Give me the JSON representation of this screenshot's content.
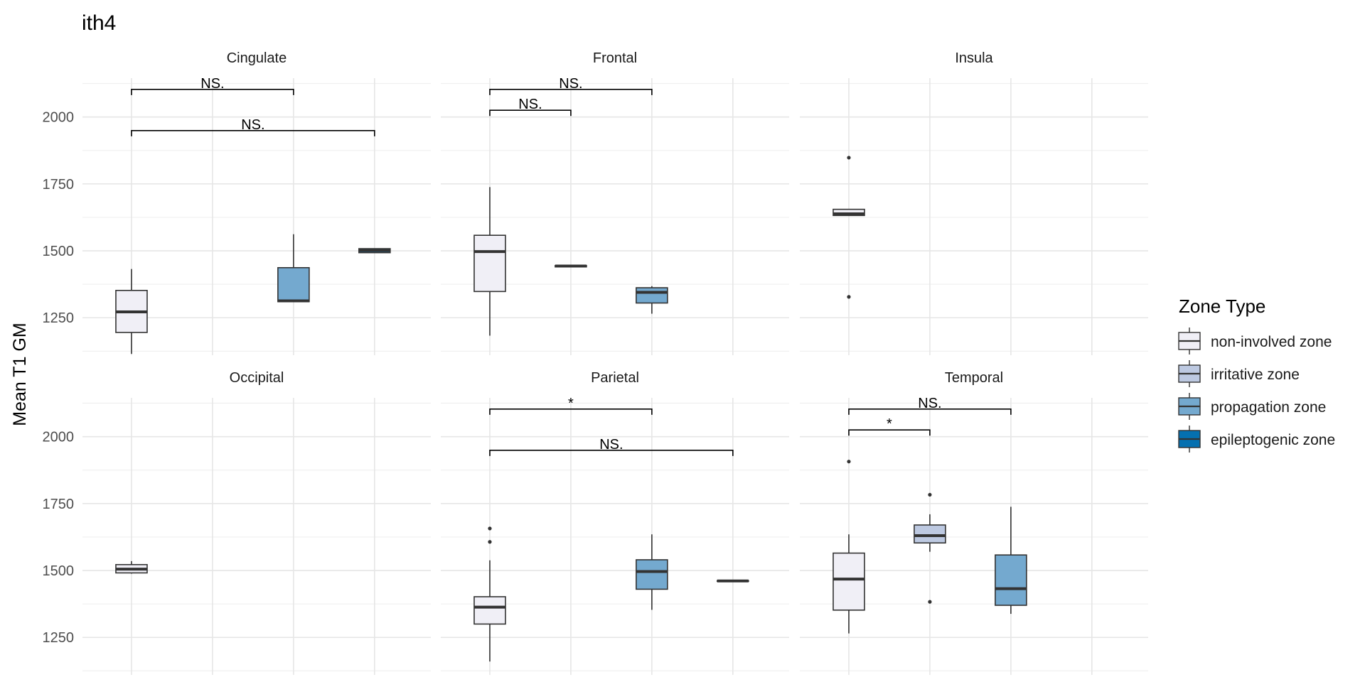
{
  "chart_data": {
    "type": "box",
    "title": "ith4",
    "xlabel": "",
    "ylabel": "Mean T1 GM",
    "ylim": [
      1110,
      2145
    ],
    "yticks": [
      1250,
      1500,
      1750,
      2000
    ],
    "ytick_labels": [
      "1250",
      "1500",
      "1750",
      "2000"
    ],
    "grid": true,
    "legend": {
      "title": "Zone Type",
      "position": "right",
      "items": [
        {
          "label": "non-involved zone",
          "color": "#f0eff6"
        },
        {
          "label": "irritative zone",
          "color": "#bdc9e1"
        },
        {
          "label": "propagation zone",
          "color": "#74a9cf"
        },
        {
          "label": "epileptogenic zone",
          "color": "#0570b0"
        }
      ]
    },
    "categories": [
      "non-involved zone",
      "irritative zone",
      "propagation zone",
      "epileptogenic zone"
    ],
    "facets": [
      {
        "label": "Cingulate",
        "boxes": [
          {
            "category": 0,
            "q1": 1195,
            "median": 1272,
            "q3": 1352,
            "whisker_low": 1115,
            "whisker_high": 1432,
            "outliers": []
          },
          {
            "category": 2,
            "q1": 1310,
            "median": 1313,
            "q3": 1437,
            "whisker_low": 1310,
            "whisker_high": 1562,
            "outliers": []
          },
          {
            "category": 3,
            "q1": 1493,
            "median": 1501,
            "q3": 1508,
            "whisker_low": 1493,
            "whisker_high": 1508,
            "outliers": []
          }
        ],
        "comparisons": [
          {
            "from": 0,
            "to": 2,
            "y": 2103,
            "label": "NS."
          },
          {
            "from": 0,
            "to": 3,
            "y": 1949,
            "label": "NS."
          }
        ]
      },
      {
        "label": "Frontal",
        "boxes": [
          {
            "category": 0,
            "q1": 1348,
            "median": 1497,
            "q3": 1558,
            "whisker_low": 1183,
            "whisker_high": 1738,
            "outliers": []
          },
          {
            "category": 1,
            "q1": 1440,
            "median": 1443,
            "q3": 1445,
            "whisker_low": 1440,
            "whisker_high": 1445,
            "outliers": []
          },
          {
            "category": 2,
            "q1": 1305,
            "median": 1345,
            "q3": 1362,
            "whisker_low": 1265,
            "whisker_high": 1368,
            "outliers": []
          }
        ],
        "comparisons": [
          {
            "from": 0,
            "to": 2,
            "y": 2103,
            "label": "NS."
          },
          {
            "from": 0,
            "to": 1,
            "y": 2025,
            "label": "NS."
          }
        ]
      },
      {
        "label": "Insula",
        "boxes": [
          {
            "category": 0,
            "q1": 1632,
            "median": 1638,
            "q3": 1655,
            "whisker_low": 1632,
            "whisker_high": 1655,
            "outliers": [
              1848,
              1328
            ]
          }
        ],
        "comparisons": []
      },
      {
        "label": "Occipital",
        "boxes": [
          {
            "category": 0,
            "q1": 1491,
            "median": 1505,
            "q3": 1522,
            "whisker_low": 1488,
            "whisker_high": 1535,
            "outliers": []
          }
        ],
        "comparisons": []
      },
      {
        "label": "Parietal",
        "boxes": [
          {
            "category": 0,
            "q1": 1300,
            "median": 1363,
            "q3": 1402,
            "whisker_low": 1160,
            "whisker_high": 1538,
            "outliers": [
              1657,
              1607
            ]
          },
          {
            "category": 2,
            "q1": 1430,
            "median": 1496,
            "q3": 1540,
            "whisker_low": 1353,
            "whisker_high": 1635,
            "outliers": []
          },
          {
            "category": 3,
            "q1": 1460,
            "median": 1461,
            "q3": 1462,
            "whisker_low": 1460,
            "whisker_high": 1462,
            "outliers": []
          }
        ],
        "comparisons": [
          {
            "from": 0,
            "to": 2,
            "y": 2103,
            "label": "*"
          },
          {
            "from": 0,
            "to": 3,
            "y": 1949,
            "label": "NS."
          }
        ]
      },
      {
        "label": "Temporal",
        "boxes": [
          {
            "category": 0,
            "q1": 1352,
            "median": 1468,
            "q3": 1565,
            "whisker_low": 1265,
            "whisker_high": 1635,
            "outliers": [
              1907
            ]
          },
          {
            "category": 1,
            "q1": 1603,
            "median": 1630,
            "q3": 1670,
            "whisker_low": 1570,
            "whisker_high": 1710,
            "outliers": [
              1783,
              1383
            ]
          },
          {
            "category": 2,
            "q1": 1370,
            "median": 1432,
            "q3": 1558,
            "whisker_low": 1338,
            "whisker_high": 1738,
            "outliers": []
          }
        ],
        "comparisons": [
          {
            "from": 0,
            "to": 2,
            "y": 2103,
            "label": "NS."
          },
          {
            "from": 0,
            "to": 1,
            "y": 2025,
            "label": "*"
          }
        ]
      }
    ]
  }
}
